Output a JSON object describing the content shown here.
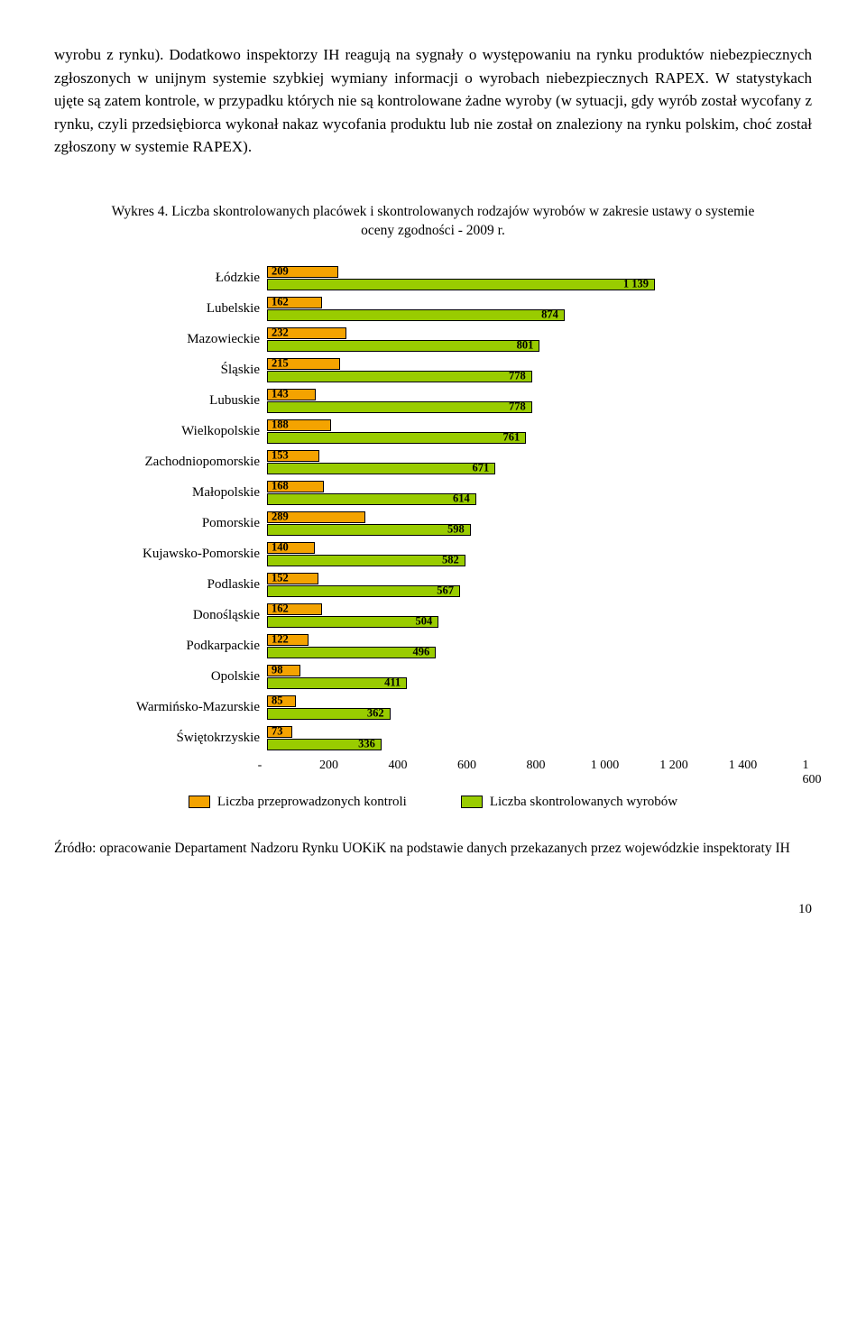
{
  "paragraph": "wyrobu z rynku). Dodatkowo inspektorzy IH reagują na sygnały o występowaniu na rynku produktów niebezpiecznych zgłoszonych w unijnym systemie szybkiej wymiany informacji o wyrobach niebezpiecznych RAPEX. W statystykach ujęte są zatem kontrole, w przypadku których nie są kontrolowane żadne wyroby (w sytuacji, gdy wyrób został wycofany z rynku, czyli przedsiębiorca wykonał nakaz wycofania produktu lub nie został on znaleziony na rynku polskim, choć został zgłoszony w systemie RAPEX).",
  "chart": {
    "title": "Wykres 4. Liczba skontrolowanych placówek i skontrolowanych rodzajów wyrobów w zakresie ustawy o systemie oceny zgodności - 2009 r.",
    "x_min": 0,
    "x_max": 1600,
    "x_step": 200,
    "tick_labels": [
      "-",
      "200",
      "400",
      "600",
      "800",
      "1 000",
      "1 200",
      "1 400",
      "1 600"
    ],
    "series_a_color": "#f4a300",
    "series_b_color": "#99cc00",
    "bar_border": "#000000",
    "categories": [
      {
        "label": "Łódzkie",
        "a": 209,
        "b": 1139,
        "b_label": "1 139"
      },
      {
        "label": "Lubelskie",
        "a": 162,
        "b": 874,
        "b_label": "874"
      },
      {
        "label": "Mazowieckie",
        "a": 232,
        "b": 801,
        "b_label": "801"
      },
      {
        "label": "Śląskie",
        "a": 215,
        "b": 778,
        "b_label": "778"
      },
      {
        "label": "Lubuskie",
        "a": 143,
        "b": 778,
        "b_label": "778"
      },
      {
        "label": "Wielkopolskie",
        "a": 188,
        "b": 761,
        "b_label": "761"
      },
      {
        "label": "Zachodniopomorskie",
        "a": 153,
        "b": 671,
        "b_label": "671"
      },
      {
        "label": "Małopolskie",
        "a": 168,
        "b": 614,
        "b_label": "614"
      },
      {
        "label": "Pomorskie",
        "a": 289,
        "b": 598,
        "b_label": "598"
      },
      {
        "label": "Kujawsko-Pomorskie",
        "a": 140,
        "b": 582,
        "b_label": "582"
      },
      {
        "label": "Podlaskie",
        "a": 152,
        "b": 567,
        "b_label": "567"
      },
      {
        "label": "Donośląskie",
        "a": 162,
        "b": 504,
        "b_label": "504"
      },
      {
        "label": "Podkarpackie",
        "a": 122,
        "b": 496,
        "b_label": "496"
      },
      {
        "label": "Opolskie",
        "a": 98,
        "b": 411,
        "b_label": "411"
      },
      {
        "label": "Warmińsko-Mazurskie",
        "a": 85,
        "b": 362,
        "b_label": "362"
      },
      {
        "label": "Świętokrzyskie",
        "a": 73,
        "b": 336,
        "b_label": "336"
      }
    ],
    "legend": {
      "a": "Liczba przeprowadzonych kontroli",
      "b": "Liczba skontrolowanych wyrobów"
    }
  },
  "source": "Źródło: opracowanie Departament Nadzoru Rynku UOKiK na podstawie danych przekazanych przez wojewódzkie inspektoraty IH",
  "page_number": "10"
}
